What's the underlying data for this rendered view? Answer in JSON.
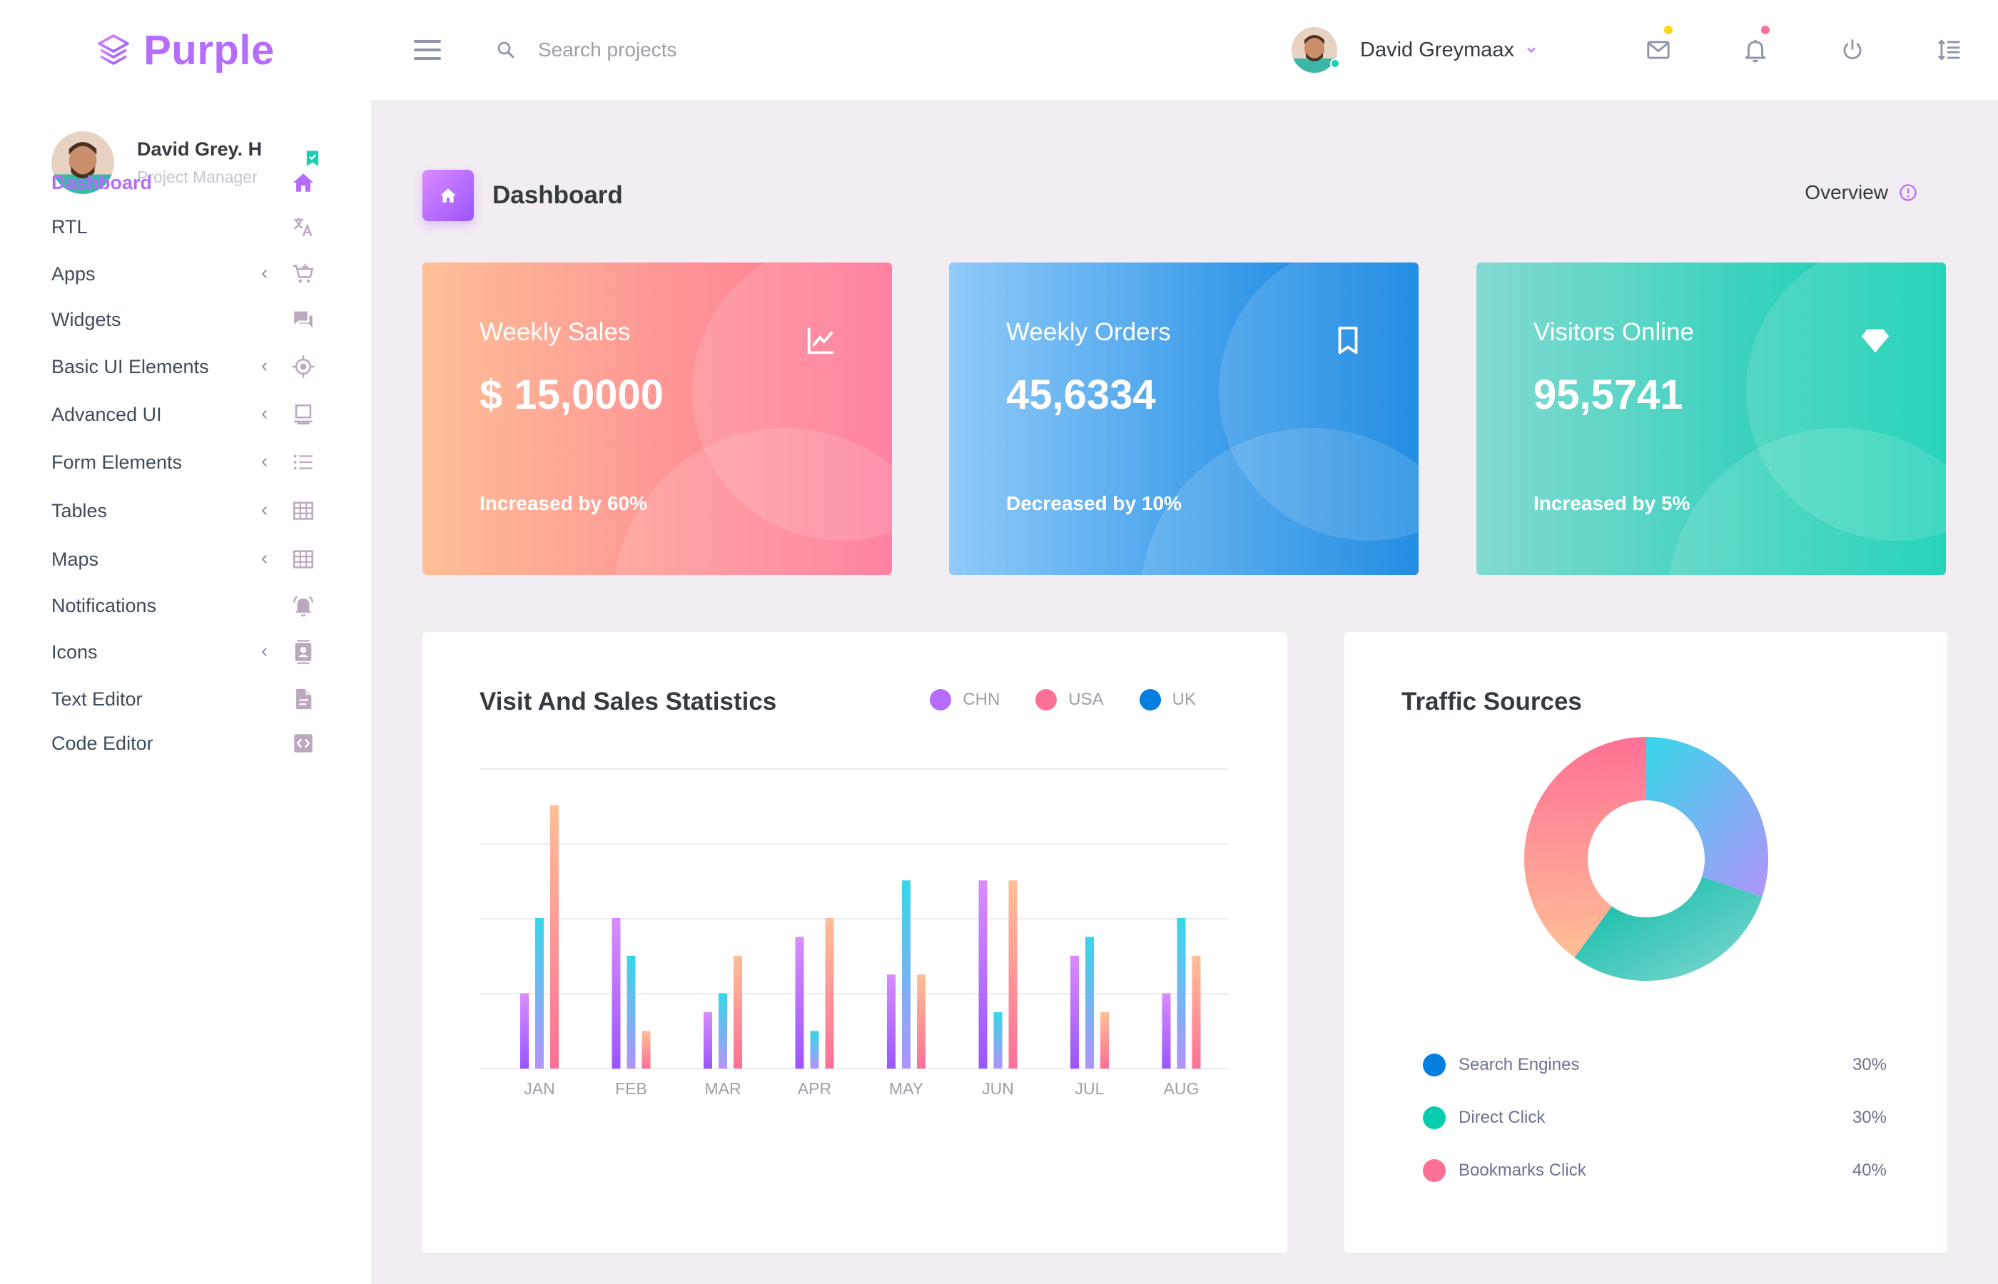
{
  "brand": {
    "name": "Purple"
  },
  "search": {
    "placeholder": "Search projects"
  },
  "topbar": {
    "user_name": "David Greymaax"
  },
  "sidebar": {
    "profile": {
      "name": "David Grey. H",
      "role": "Project Manager"
    },
    "items": [
      {
        "label": "Dashboard",
        "icon": "home-icon",
        "active": true,
        "arrow": false
      },
      {
        "label": "RTL",
        "icon": "translate-icon",
        "arrow": false
      },
      {
        "label": "Apps",
        "icon": "cart-icon",
        "arrow": true
      },
      {
        "label": "Widgets",
        "icon": "chat-icon",
        "arrow": false
      },
      {
        "label": "Basic UI Elements",
        "icon": "crosshairs-icon",
        "arrow": true
      },
      {
        "label": "Advanced UI",
        "icon": "monitor-icon",
        "arrow": true
      },
      {
        "label": "Form Elements",
        "icon": "list-icon",
        "arrow": true
      },
      {
        "label": "Tables",
        "icon": "table-icon",
        "arrow": true
      },
      {
        "label": "Maps",
        "icon": "map-grid-icon",
        "arrow": true
      },
      {
        "label": "Notifications",
        "icon": "bell-ring-icon",
        "arrow": false
      },
      {
        "label": "Icons",
        "icon": "contacts-icon",
        "arrow": true
      },
      {
        "label": "Text Editor",
        "icon": "file-document-icon",
        "arrow": false
      },
      {
        "label": "Code Editor",
        "icon": "code-icon",
        "arrow": false
      }
    ]
  },
  "page": {
    "title": "Dashboard",
    "overview": "Overview"
  },
  "cards": [
    {
      "title": "Weekly Sales",
      "value": "$ 15,0000",
      "footer": "Increased by 60%",
      "icon": "chart-line-icon"
    },
    {
      "title": "Weekly Orders",
      "value": "45,6334",
      "footer": "Decreased by 10%",
      "icon": "bookmark-icon"
    },
    {
      "title": "Visitors Online",
      "value": "95,5741",
      "footer": "Increased by 5%",
      "icon": "diamond-icon"
    }
  ],
  "visit_chart": {
    "title": "Visit And Sales Statistics",
    "legend": [
      {
        "name": "CHN",
        "color": "#b66dff"
      },
      {
        "name": "USA",
        "color": "#fe7096"
      },
      {
        "name": "UK",
        "color": "#047edf"
      }
    ]
  },
  "traffic": {
    "title": "Traffic Sources",
    "legend": [
      {
        "label": "Search Engines",
        "value": "30%",
        "color": "#047edf"
      },
      {
        "label": "Direct Click",
        "value": "30%",
        "color": "#07cdae"
      },
      {
        "label": "Bookmarks Click",
        "value": "40%",
        "color": "#fe7096"
      }
    ]
  },
  "chart_data": [
    {
      "type": "bar",
      "title": "Visit And Sales Statistics",
      "categories": [
        "JAN",
        "FEB",
        "MAR",
        "APR",
        "MAY",
        "JUN",
        "JUL",
        "AUG"
      ],
      "series": [
        {
          "name": "CHN",
          "values": [
            20,
            40,
            15,
            35,
            25,
            50,
            30,
            20
          ]
        },
        {
          "name": "UK",
          "values": [
            40,
            30,
            20,
            10,
            50,
            15,
            35,
            40
          ]
        },
        {
          "name": "USA",
          "values": [
            70,
            10,
            30,
            40,
            25,
            50,
            15,
            30
          ]
        }
      ],
      "ylim": [
        0,
        80
      ],
      "grid": true,
      "legend_position": "top-right"
    },
    {
      "type": "pie",
      "title": "Traffic Sources",
      "labels": [
        "Search Engines",
        "Direct Click",
        "Bookmarks Click"
      ],
      "values": [
        30,
        30,
        40
      ],
      "donut": true
    }
  ]
}
